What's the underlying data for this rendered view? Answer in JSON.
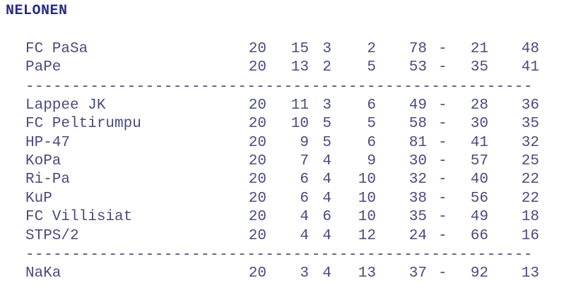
{
  "title": "NELONEN",
  "groups": [
    [
      {
        "team": "FC PaSa",
        "games": "20",
        "won": "15",
        "drawn": "3",
        "lost": "2",
        "gf": "78",
        "ga": "21",
        "points": "48"
      },
      {
        "team": "PaPe",
        "games": "20",
        "won": "13",
        "drawn": "2",
        "lost": "5",
        "gf": "53",
        "ga": "35",
        "points": "41"
      }
    ],
    [
      {
        "team": "Lappee JK",
        "games": "20",
        "won": "11",
        "drawn": "3",
        "lost": "6",
        "gf": "49",
        "ga": "28",
        "points": "36"
      },
      {
        "team": "FC Peltirumpu",
        "games": "20",
        "won": "10",
        "drawn": "5",
        "lost": "5",
        "gf": "58",
        "ga": "30",
        "points": "35"
      },
      {
        "team": "HP-47",
        "games": "20",
        "won": "9",
        "drawn": "5",
        "lost": "6",
        "gf": "81",
        "ga": "41",
        "points": "32"
      },
      {
        "team": "KoPa",
        "games": "20",
        "won": "7",
        "drawn": "4",
        "lost": "9",
        "gf": "30",
        "ga": "57",
        "points": "25"
      },
      {
        "team": "Ri-Pa",
        "games": "20",
        "won": "6",
        "drawn": "4",
        "lost": "10",
        "gf": "32",
        "ga": "40",
        "points": "22"
      },
      {
        "team": "KuP",
        "games": "20",
        "won": "6",
        "drawn": "4",
        "lost": "10",
        "gf": "38",
        "ga": "56",
        "points": "22"
      },
      {
        "team": "FC Villisiat",
        "games": "20",
        "won": "4",
        "drawn": "6",
        "lost": "10",
        "gf": "35",
        "ga": "49",
        "points": "18"
      },
      {
        "team": "STPS/2",
        "games": "20",
        "won": "4",
        "drawn": "4",
        "lost": "12",
        "gf": "24",
        "ga": "66",
        "points": "16"
      }
    ],
    [
      {
        "team": "NaKa",
        "games": "20",
        "won": "3",
        "drawn": "4",
        "lost": "13",
        "gf": "37",
        "ga": "92",
        "points": "13"
      }
    ]
  ],
  "goal_separator": "-",
  "divider": "-------------------------------------------------------"
}
